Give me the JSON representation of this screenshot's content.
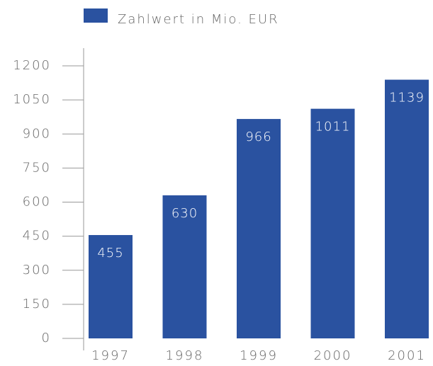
{
  "chart_data": {
    "type": "bar",
    "categories": [
      "1997",
      "1998",
      "1999",
      "2000",
      "2001"
    ],
    "series": [
      {
        "name": "Zahlwert in Mio. EUR",
        "color": "#2a52a0",
        "values": [
          455,
          630,
          966,
          1011,
          1139
        ]
      }
    ],
    "ylim": [
      0,
      1200
    ],
    "yticks": [
      0,
      150,
      300,
      450,
      600,
      750,
      900,
      1050,
      1200
    ],
    "legend": "top"
  }
}
